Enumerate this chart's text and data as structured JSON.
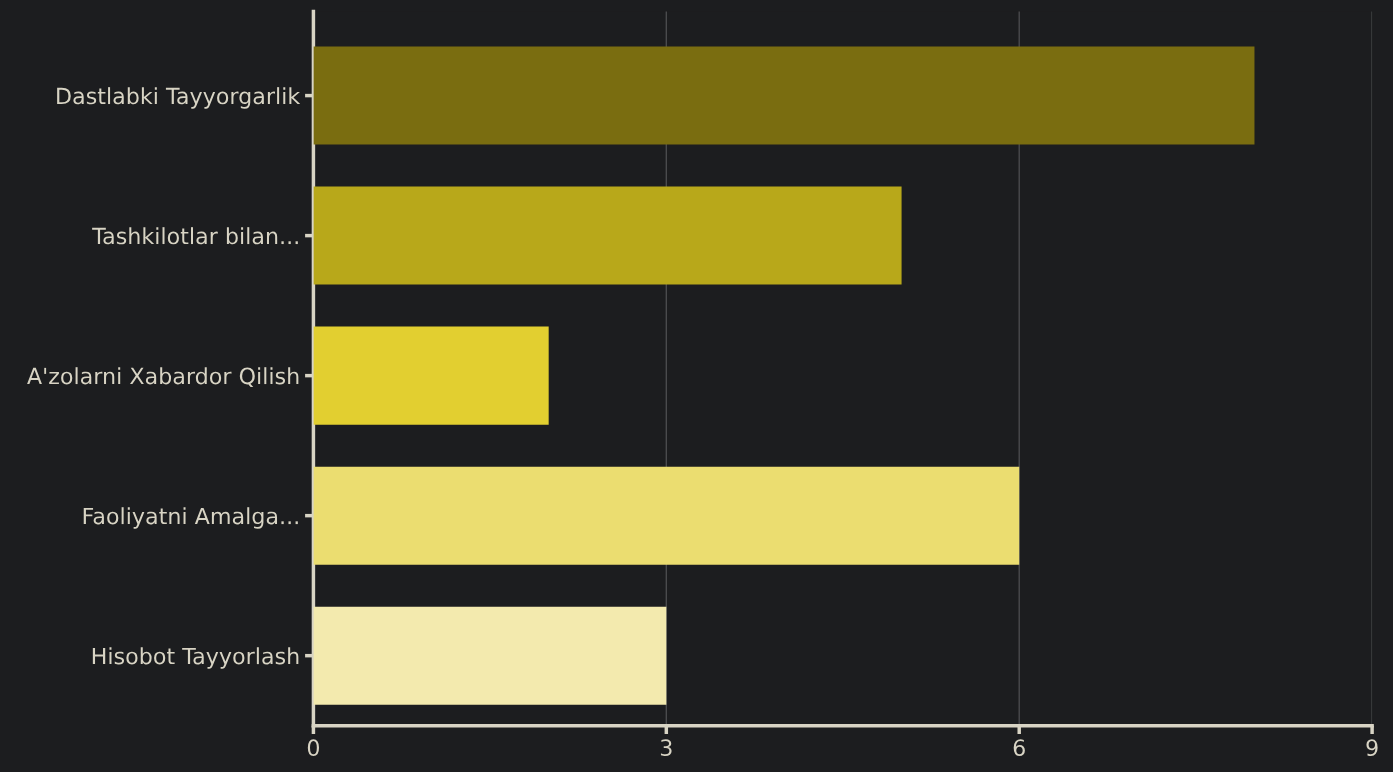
{
  "chart_data": {
    "type": "bar",
    "orientation": "horizontal",
    "categories": [
      "Dastlabki Tayyorgarlik",
      "Tashkilotlar bilan...",
      "A'zolarni Xabardor Qilish",
      "Faoliyatni Amalga...",
      "Hisobot Tayyorlash"
    ],
    "values": [
      8,
      5,
      2,
      6,
      3
    ],
    "colors": [
      "#7a6d10",
      "#b8a81a",
      "#e2cf30",
      "#ebdd70",
      "#f3eaae"
    ],
    "xlim": [
      0,
      9
    ],
    "xticks": [
      0,
      3,
      6,
      9
    ],
    "grid": "x"
  }
}
